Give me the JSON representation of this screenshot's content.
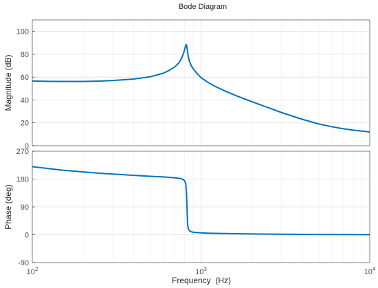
{
  "chart_data": {
    "type": "line",
    "title": "Bode Diagram",
    "xlabel": "Frequency  (Hz)",
    "xscale": "log",
    "xlim": [
      100,
      10000
    ],
    "x_tick_labels": [
      {
        "base": "10",
        "exp": "2",
        "value": 100
      },
      {
        "base": "10",
        "exp": "3",
        "value": 1000
      },
      {
        "base": "10",
        "exp": "4",
        "value": 10000
      }
    ],
    "grid": true,
    "line_color": "#0072bd",
    "panels": [
      {
        "name": "magnitude",
        "ylabel": "Magnitude (dB)",
        "ylim": [
          0,
          110
        ],
        "y_ticks": [
          0,
          20,
          40,
          60,
          80,
          100
        ],
        "y_tick_labels": [
          "0",
          "20",
          "40",
          "60",
          "80",
          "100"
        ],
        "series": [
          {
            "x": [
              100,
              125,
              150,
              200,
              250,
              300,
              400,
              500,
              600,
              650,
              700,
              740,
              770,
              790,
              805,
              815,
              822,
              830,
              840,
              855,
              875,
              900,
              950,
              1000,
              1100,
              1200,
              1400,
              1600,
              2000,
              2500,
              3000,
              4000,
              5000,
              6000,
              7000,
              8000,
              9000,
              10000
            ],
            "y": [
              56.6,
              56.3,
              56.2,
              56.2,
              56.5,
              57.0,
              58.3,
              60.3,
              63.5,
              66.0,
              69.0,
              72.5,
              77.0,
              81.5,
              86.0,
              88.6,
              87.5,
              83.5,
              78.0,
              73.5,
              70.0,
              67.2,
              63.0,
              59.5,
              55.4,
              52.2,
              47.6,
              44.0,
              38.5,
              33.3,
              29.0,
              23.0,
              19.0,
              16.5,
              14.8,
              13.6,
              12.8,
              12.0
            ]
          }
        ]
      },
      {
        "name": "phase",
        "ylabel": "Phase (deg)",
        "ylim": [
          -90,
          270
        ],
        "y_ticks": [
          -90,
          0,
          90,
          180,
          270
        ],
        "y_tick_labels": [
          "-90",
          "0",
          "90",
          "180",
          "270"
        ],
        "series": [
          {
            "x": [
              100,
              125,
              150,
              200,
              250,
              300,
              400,
              500,
              600,
              700,
              750,
              780,
              800,
              812,
              820,
              826,
              832,
              838,
              845,
              855,
              870,
              900,
              950,
              1000,
              1100,
              1200,
              1500,
              2000,
              3000,
              4000,
              5000,
              7000,
              10000
            ],
            "y": [
              220,
              214,
              209,
              203,
              199,
              196,
              192,
              189,
              187,
              184,
              182,
              179,
              174,
              165,
              135,
              85,
              35,
              22,
              17,
              13,
              10,
              8,
              7,
              6,
              5,
              4.5,
              3.5,
              2.5,
              1.7,
              1.2,
              0.9,
              0.5,
              0.2
            ]
          }
        ]
      }
    ]
  }
}
